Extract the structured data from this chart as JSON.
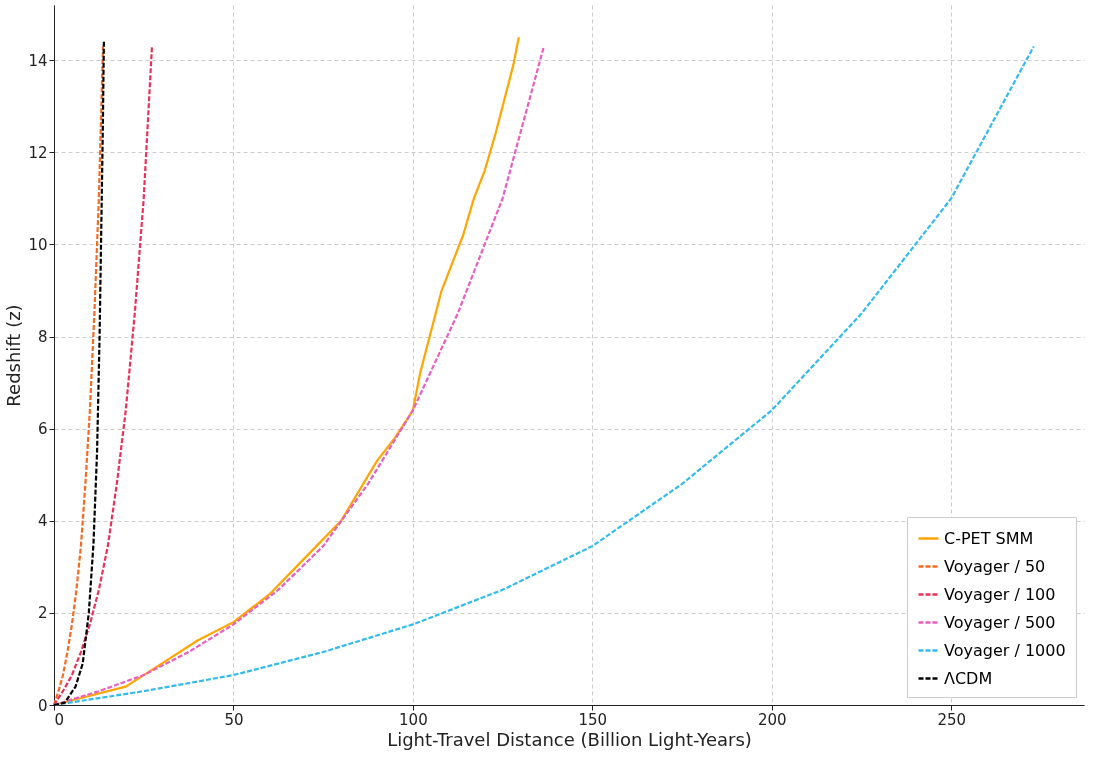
{
  "chart_data": {
    "type": "line",
    "xlabel": "Light-Travel Distance (Billion Light-Years)",
    "ylabel": "Redshift (z)",
    "xlim": [
      0,
      287
    ],
    "ylim": [
      0,
      15.2
    ],
    "xticks": [
      0,
      50,
      100,
      150,
      200,
      250
    ],
    "yticks": [
      0,
      2,
      4,
      6,
      8,
      10,
      12,
      14
    ],
    "grid": true,
    "legend": "bottom right",
    "series": [
      {
        "name": "C-PET SMM",
        "color": "#ffa500",
        "line_style": "solid",
        "x": [
          0,
          10,
          20,
          30,
          40,
          50,
          60,
          70,
          80,
          90,
          95,
          100,
          102,
          104,
          106,
          108,
          111,
          114,
          117,
          120,
          123,
          126,
          128,
          129.5
        ],
        "values": [
          0,
          0.2,
          0.4,
          0.9,
          1.4,
          1.8,
          2.4,
          3.2,
          4.0,
          5.3,
          5.8,
          6.4,
          7.2,
          7.8,
          8.4,
          9.0,
          9.6,
          10.2,
          11.0,
          11.6,
          12.4,
          13.3,
          13.9,
          14.5
        ]
      },
      {
        "name": "Voyager / 50",
        "color": "#f26b21",
        "line_style": "dashed",
        "x": [
          0,
          1.25,
          2.5,
          3.75,
          5,
          6.25,
          7.5,
          8.75,
          10,
          11.25,
          12.5,
          13.65
        ],
        "values": [
          0,
          0.3,
          0.65,
          1.15,
          1.75,
          2.5,
          3.45,
          4.8,
          6.4,
          8.5,
          11.0,
          14.3
        ]
      },
      {
        "name": "Voyager / 100",
        "color": "#e8325a",
        "line_style": "dashed",
        "x": [
          0,
          2.5,
          5,
          7.5,
          10,
          12.5,
          15,
          17.5,
          20,
          22.5,
          25,
          27.3
        ],
        "values": [
          0,
          0.3,
          0.65,
          1.15,
          1.75,
          2.5,
          3.45,
          4.8,
          6.4,
          8.5,
          11.0,
          14.3
        ]
      },
      {
        "name": "Voyager / 500",
        "color": "#e85fc0",
        "line_style": "dashed",
        "x": [
          0,
          12.5,
          25,
          37.5,
          50,
          62.5,
          75,
          87.5,
          100,
          112.5,
          125,
          136.5
        ],
        "values": [
          0,
          0.3,
          0.65,
          1.15,
          1.75,
          2.5,
          3.45,
          4.8,
          6.4,
          8.5,
          11.0,
          14.3
        ]
      },
      {
        "name": "Voyager / 1000",
        "color": "#33bbee",
        "line_style": "dashed",
        "x": [
          0,
          25,
          50,
          75,
          100,
          125,
          150,
          175,
          200,
          225,
          250,
          273
        ],
        "values": [
          0,
          0.3,
          0.65,
          1.15,
          1.75,
          2.5,
          3.45,
          4.8,
          6.4,
          8.5,
          11.0,
          14.3
        ]
      },
      {
        "name": "ΛCDM",
        "color": "#000000",
        "line_style": "dashed",
        "x": [
          0,
          3,
          6,
          8,
          9.7,
          11,
          12,
          12.7,
          13.2,
          13.6,
          13.9
        ],
        "values": [
          0,
          0.05,
          0.4,
          0.9,
          2,
          3.5,
          5.5,
          8,
          10.5,
          12.5,
          14.4
        ]
      }
    ]
  }
}
